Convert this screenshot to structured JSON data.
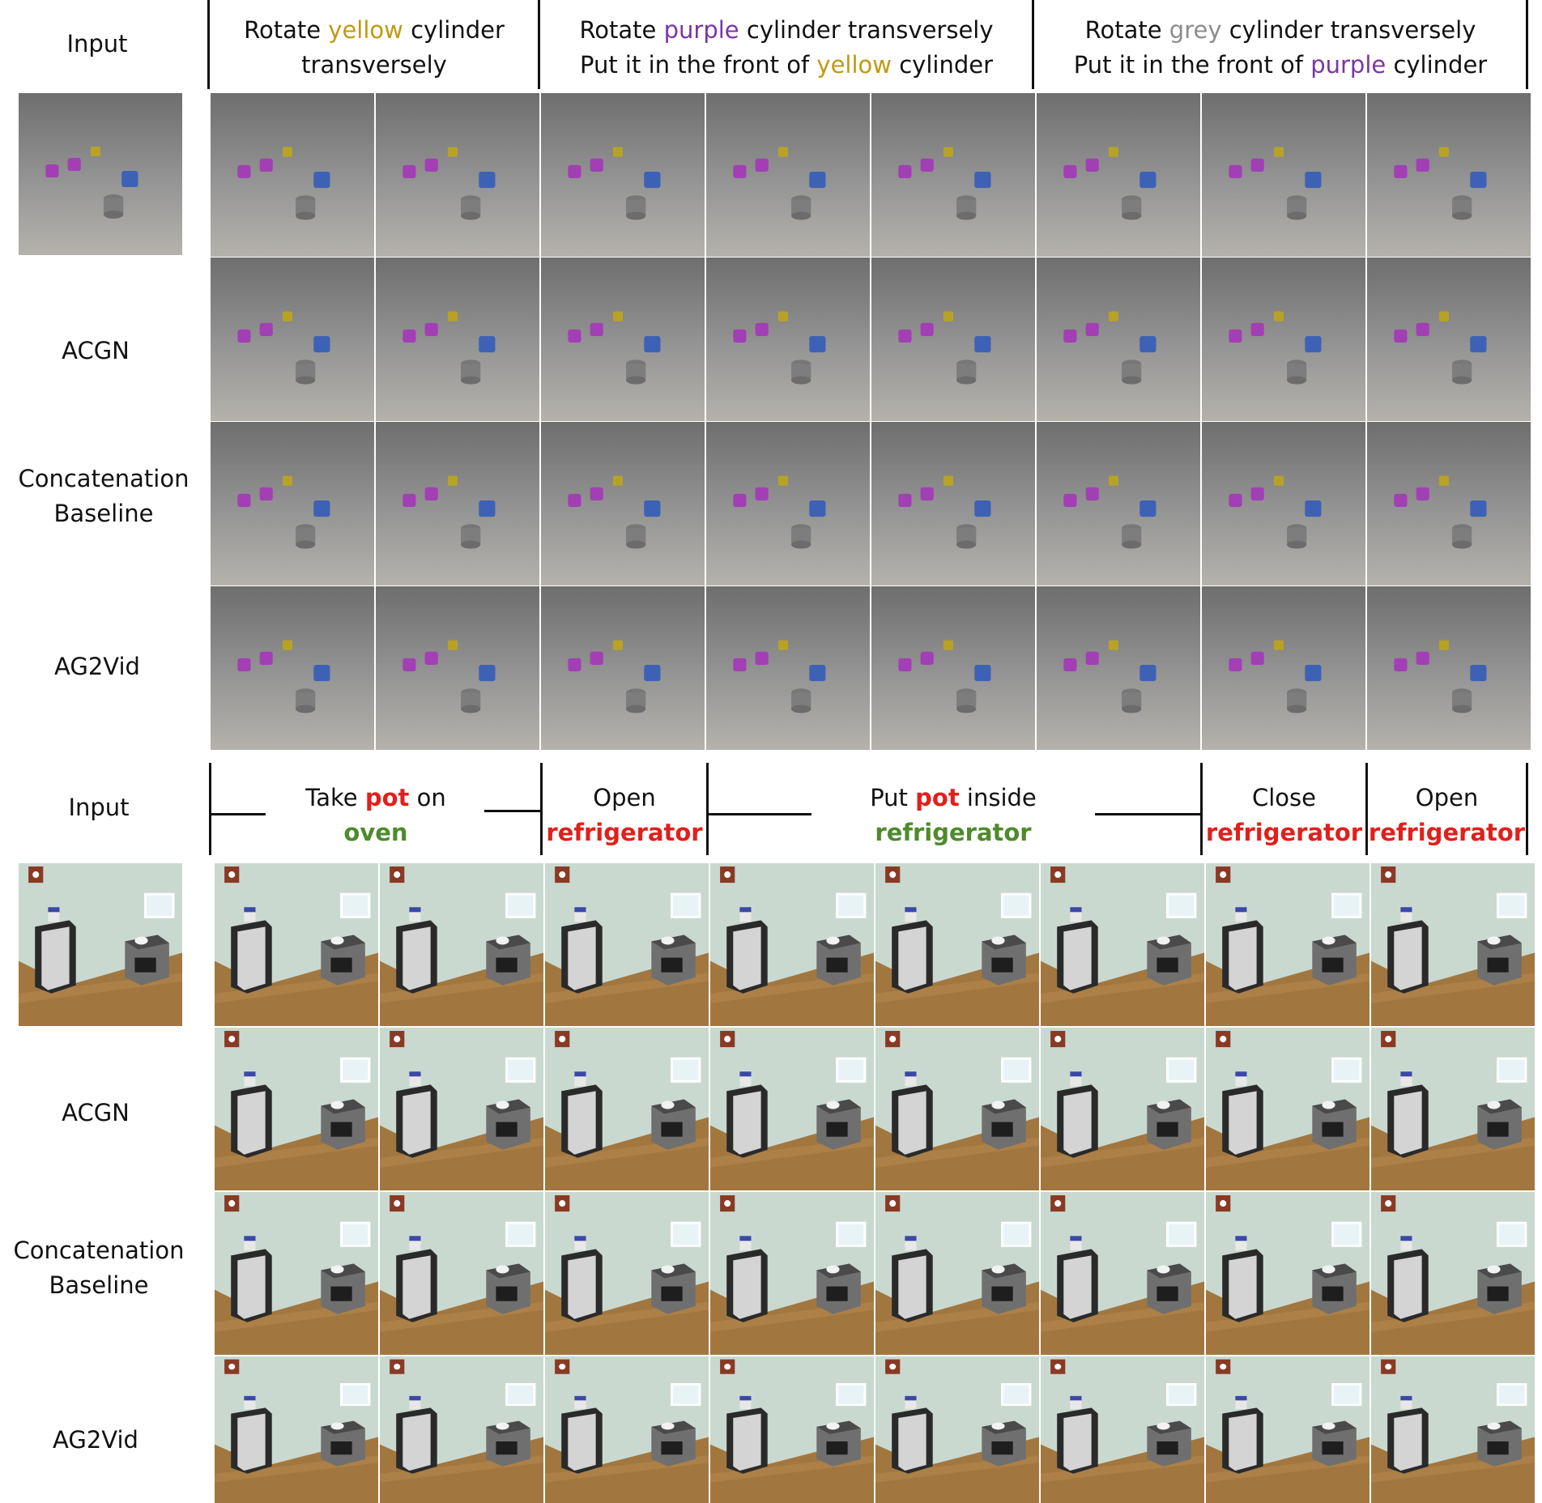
{
  "clevr": {
    "row_labels": [
      "Input",
      "ACGN",
      "Concatenation Baseline",
      "AG2Vid"
    ],
    "headers": [
      {
        "lines": [
          [
            {
              "t": "Rotate ",
              "c": ""
            },
            {
              "t": "yellow",
              "c": "yellow"
            },
            {
              "t": " cylinder",
              "c": ""
            }
          ],
          [
            {
              "t": "transversely",
              "c": ""
            }
          ]
        ]
      },
      {
        "lines": [
          [
            {
              "t": "Rotate ",
              "c": ""
            },
            {
              "t": "purple",
              "c": "purple"
            },
            {
              "t": " cylinder transversely",
              "c": ""
            }
          ],
          [
            {
              "t": "Put it in the front of ",
              "c": ""
            },
            {
              "t": "yellow",
              "c": "yellow"
            },
            {
              "t": " cylinder",
              "c": ""
            }
          ]
        ]
      },
      {
        "lines": [
          [
            {
              "t": "Rotate ",
              "c": ""
            },
            {
              "t": "grey",
              "c": "grey"
            },
            {
              "t": " cylinder transversely",
              "c": ""
            }
          ],
          [
            {
              "t": "Put it in the front of ",
              "c": ""
            },
            {
              "t": "purple",
              "c": "purple"
            },
            {
              "t": " cylinder",
              "c": ""
            }
          ]
        ]
      }
    ]
  },
  "kitchen": {
    "row_labels": [
      "Input",
      "ACGN",
      "Concatenation Baseline",
      "AG2Vid"
    ],
    "headers": [
      {
        "lines": [
          [
            {
              "t": "Take ",
              "c": ""
            },
            {
              "t": "pot",
              "c": "red"
            },
            {
              "t": " on",
              "c": ""
            }
          ],
          [
            {
              "t": "oven",
              "c": "green"
            }
          ]
        ]
      },
      {
        "lines": [
          [
            {
              "t": "Open",
              "c": ""
            }
          ],
          [
            {
              "t": "refrigerator",
              "c": "red"
            }
          ]
        ]
      },
      {
        "lines": [
          [
            {
              "t": "Put ",
              "c": ""
            },
            {
              "t": "pot",
              "c": "red"
            },
            {
              "t": " inside",
              "c": ""
            }
          ],
          [
            {
              "t": "refrigerator",
              "c": "green"
            }
          ]
        ]
      },
      {
        "lines": [
          [
            {
              "t": "Close",
              "c": ""
            }
          ],
          [
            {
              "t": "refrigerator",
              "c": "red"
            }
          ]
        ]
      },
      {
        "lines": [
          [
            {
              "t": "Open",
              "c": ""
            }
          ],
          [
            {
              "t": "refrigerator",
              "c": "red"
            }
          ]
        ]
      }
    ]
  },
  "colors": {
    "yellow": "#c09a12",
    "purple": "#7a35a8",
    "grey": "#8c8c8c",
    "red": "#e0201c",
    "green": "#4f8a2c"
  }
}
